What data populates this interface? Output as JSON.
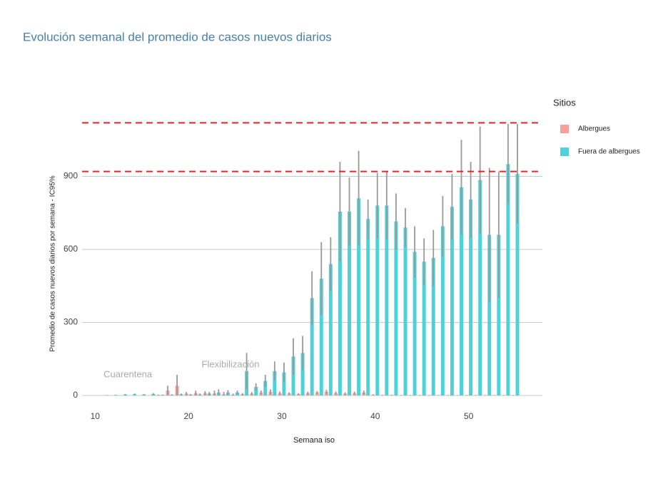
{
  "chart_data": {
    "type": "bar",
    "title": "Evolución semanal del promedio de casos nuevos diarios",
    "x_label": "Semana iso",
    "y_label": "Promedio de casos nuevos diarios por semana - IC95%",
    "legend_title": "Sitios",
    "x": [
      11,
      12,
      13,
      14,
      15,
      16,
      17,
      18,
      19,
      20,
      21,
      22,
      23,
      24,
      25,
      26,
      27,
      28,
      29,
      30,
      31,
      32,
      33,
      34,
      35,
      36,
      37,
      38,
      39,
      40,
      41,
      42,
      43,
      44,
      45,
      46,
      47,
      48,
      49,
      50,
      51,
      52,
      53,
      54,
      55
    ],
    "series": [
      {
        "name": "Albergues",
        "color": "#f8a09a",
        "values": [
          0,
          0,
          0,
          0,
          0,
          0,
          2,
          20,
          40,
          8,
          10,
          10,
          8,
          5,
          3,
          5,
          8,
          12,
          15,
          10,
          8,
          6,
          10,
          12,
          15,
          10,
          8,
          10,
          12,
          3,
          2,
          2,
          1,
          1,
          1,
          1,
          1,
          1,
          1,
          1,
          1,
          1,
          1,
          1,
          1
        ],
        "errors": [
          0,
          0,
          0,
          0,
          0,
          0,
          2,
          20,
          45,
          7,
          10,
          8,
          12,
          10,
          5,
          5,
          6,
          8,
          10,
          6,
          5,
          4,
          6,
          6,
          8,
          6,
          5,
          6,
          8,
          2,
          1,
          1,
          1,
          1,
          1,
          1,
          1,
          1,
          1,
          1,
          1,
          1,
          1,
          1,
          1
        ]
      },
      {
        "name": "Fuera de albergues",
        "color": "#4fd1d9",
        "values": [
          1,
          2,
          4,
          5,
          4,
          6,
          2,
          3,
          5,
          3,
          4,
          8,
          12,
          12,
          12,
          100,
          35,
          60,
          100,
          95,
          160,
          175,
          400,
          480,
          540,
          755,
          755,
          810,
          725,
          780,
          780,
          715,
          690,
          590,
          550,
          565,
          695,
          775,
          855,
          805,
          885,
          660,
          660,
          950,
          910
        ],
        "errors": [
          1,
          1,
          2,
          3,
          2,
          4,
          2,
          2,
          3,
          3,
          4,
          7,
          13,
          10,
          8,
          75,
          15,
          25,
          40,
          40,
          75,
          70,
          110,
          150,
          110,
          205,
          140,
          195,
          80,
          135,
          140,
          115,
          80,
          105,
          95,
          115,
          125,
          135,
          195,
          155,
          220,
          275,
          260,
          165,
          205
        ]
      }
    ],
    "reference_lines": [
      1120,
      920
    ],
    "reference_color": "#ee2222",
    "annotations": [
      {
        "text": "Cuarentena",
        "x": 13.5,
        "y": 85
      },
      {
        "text": "Flexibilización",
        "x": 24.5,
        "y": 125
      }
    ],
    "xlim": [
      8.6,
      57.9
    ],
    "ylim": [
      0,
      1200
    ],
    "xticks": [
      10,
      20,
      30,
      40,
      50
    ],
    "yticks": [
      0,
      300,
      600,
      900
    ],
    "grid": true,
    "legend_position": "right"
  }
}
